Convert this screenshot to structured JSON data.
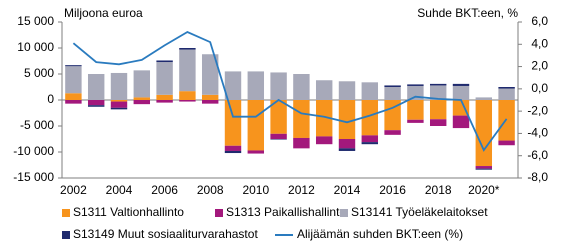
{
  "chart_data": {
    "type": "bar",
    "y_label": "Miljoona euroa",
    "y2_label": "Suhde BKT:een, %",
    "categories": [
      "2002",
      null,
      "2004",
      null,
      "2006",
      null,
      "2008",
      null,
      "2010",
      null,
      "2012",
      null,
      "2014",
      null,
      "2016",
      null,
      "2018",
      null,
      "2020*",
      null
    ],
    "series": [
      {
        "name": "S1311 Valtionhallinto",
        "color": "#f7941d",
        "values": [
          1300,
          0,
          -300,
          500,
          1000,
          1700,
          1000,
          -8800,
          -9700,
          -6500,
          -7300,
          -7000,
          -7500,
          -6800,
          -5800,
          -3800,
          -3700,
          -3000,
          -12700,
          -7800
        ]
      },
      {
        "name": "S1313 Paikallishallinto",
        "color": "#a3187c",
        "values": [
          -700,
          -1000,
          -1200,
          -800,
          -500,
          -300,
          -700,
          -1000,
          -600,
          -1000,
          -2000,
          -1500,
          -1800,
          -1300,
          -900,
          -600,
          -1300,
          -2400,
          -500,
          -900
        ]
      },
      {
        "name": "S13141 Työeläkelaitokset",
        "color": "#a7a9b9",
        "values": [
          5200,
          5000,
          5200,
          5200,
          6300,
          8000,
          7800,
          5500,
          5500,
          5300,
          5000,
          3800,
          3600,
          3400,
          2500,
          2700,
          2800,
          2700,
          500,
          2200
        ]
      },
      {
        "name": "S13149  Muut sosiaaliturvarahastot",
        "color": "#1f2a6e",
        "values": [
          200,
          -300,
          -300,
          0,
          300,
          300,
          0,
          -400,
          0,
          -100,
          0,
          0,
          -500,
          -400,
          300,
          300,
          300,
          400,
          -200,
          300
        ]
      },
      {
        "name": "Alijäämän suhden BKT:een (%)",
        "color": "#2a7bbf",
        "type": "line",
        "axis": "y2",
        "values": [
          4.1,
          2.4,
          2.2,
          2.6,
          3.9,
          5.1,
          4.2,
          -2.5,
          -2.5,
          -1.0,
          -2.2,
          -2.5,
          -3.0,
          -2.4,
          -1.7,
          -0.7,
          -0.9,
          -1.0,
          -5.5,
          -2.7
        ]
      }
    ],
    "ylim": [
      -15000,
      15000
    ],
    "yticks": [
      {
        "value": -15000,
        "label": "-15 000"
      },
      {
        "value": -10000,
        "label": "-10 000"
      },
      {
        "value": -5000,
        "label": "-5 000"
      },
      0,
      {
        "value": 5000,
        "label": "5 000"
      },
      {
        "value": 10000,
        "label": "10 000"
      },
      {
        "value": 15000,
        "label": "15 000"
      }
    ],
    "y2lim": [
      -8,
      6
    ],
    "y2ticks": [
      {
        "value": -8,
        "label": "-8,0"
      },
      {
        "value": -6,
        "label": "-6,0"
      },
      {
        "value": -4,
        "label": "-4,0"
      },
      {
        "value": -2,
        "label": "-2,0"
      },
      {
        "value": 0,
        "label": "0,0"
      },
      {
        "value": 2,
        "label": "2,0"
      },
      {
        "value": 4,
        "label": "4,0"
      },
      {
        "value": 6,
        "label": "6,0"
      }
    ],
    "grid": false
  }
}
